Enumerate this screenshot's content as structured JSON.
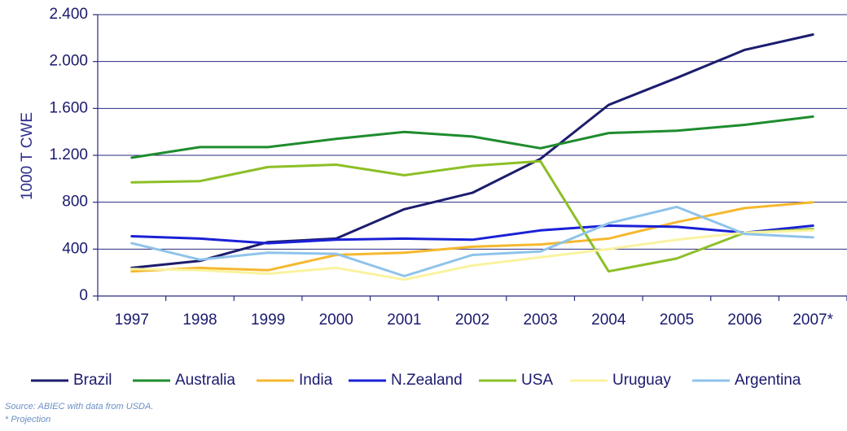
{
  "chart_data": {
    "type": "line",
    "title": "",
    "xlabel": "",
    "ylabel": "1000 T CWE",
    "categories": [
      "1997",
      "1998",
      "1999",
      "2000",
      "2001",
      "2002",
      "2003",
      "2004",
      "2005",
      "2006",
      "2007*"
    ],
    "ylim": [
      0,
      2400
    ],
    "yticks": [
      0,
      400,
      800,
      1200,
      1600,
      2000,
      2400
    ],
    "ytick_labels": [
      "0",
      "400",
      "800",
      "1.200",
      "1.600",
      "2.000",
      "2.400"
    ],
    "grid": "horizontal",
    "legend_position": "bottom",
    "series": [
      {
        "name": "Brazil",
        "color": "#1c1c6e",
        "values": [
          240,
          300,
          460,
          490,
          740,
          880,
          1170,
          1630,
          1860,
          2100,
          2230
        ]
      },
      {
        "name": "Australia",
        "color": "#1e8c2e",
        "values": [
          1180,
          1270,
          1270,
          1340,
          1400,
          1360,
          1260,
          1390,
          1410,
          1460,
          1530
        ]
      },
      {
        "name": "India",
        "color": "#f5b82e",
        "values": [
          210,
          240,
          220,
          350,
          370,
          420,
          440,
          490,
          630,
          750,
          800
        ]
      },
      {
        "name": "N.Zealand",
        "color": "#1a20d6",
        "values": [
          510,
          490,
          450,
          480,
          490,
          480,
          560,
          600,
          590,
          540,
          600
        ]
      },
      {
        "name": "USA",
        "color": "#8cbf26",
        "values": [
          970,
          980,
          1100,
          1120,
          1030,
          1110,
          1150,
          210,
          320,
          540,
          570
        ]
      },
      {
        "name": "Uruguay",
        "color": "#f9f3a0",
        "values": [
          230,
          220,
          190,
          240,
          140,
          260,
          330,
          400,
          480,
          540,
          560
        ]
      },
      {
        "name": "Argentina",
        "color": "#8fc3ea",
        "values": [
          450,
          310,
          370,
          360,
          170,
          350,
          380,
          620,
          760,
          530,
          500
        ]
      }
    ]
  },
  "footer": {
    "source": "Source: ABIEC with data from USDA.",
    "projection": "* Projection"
  }
}
